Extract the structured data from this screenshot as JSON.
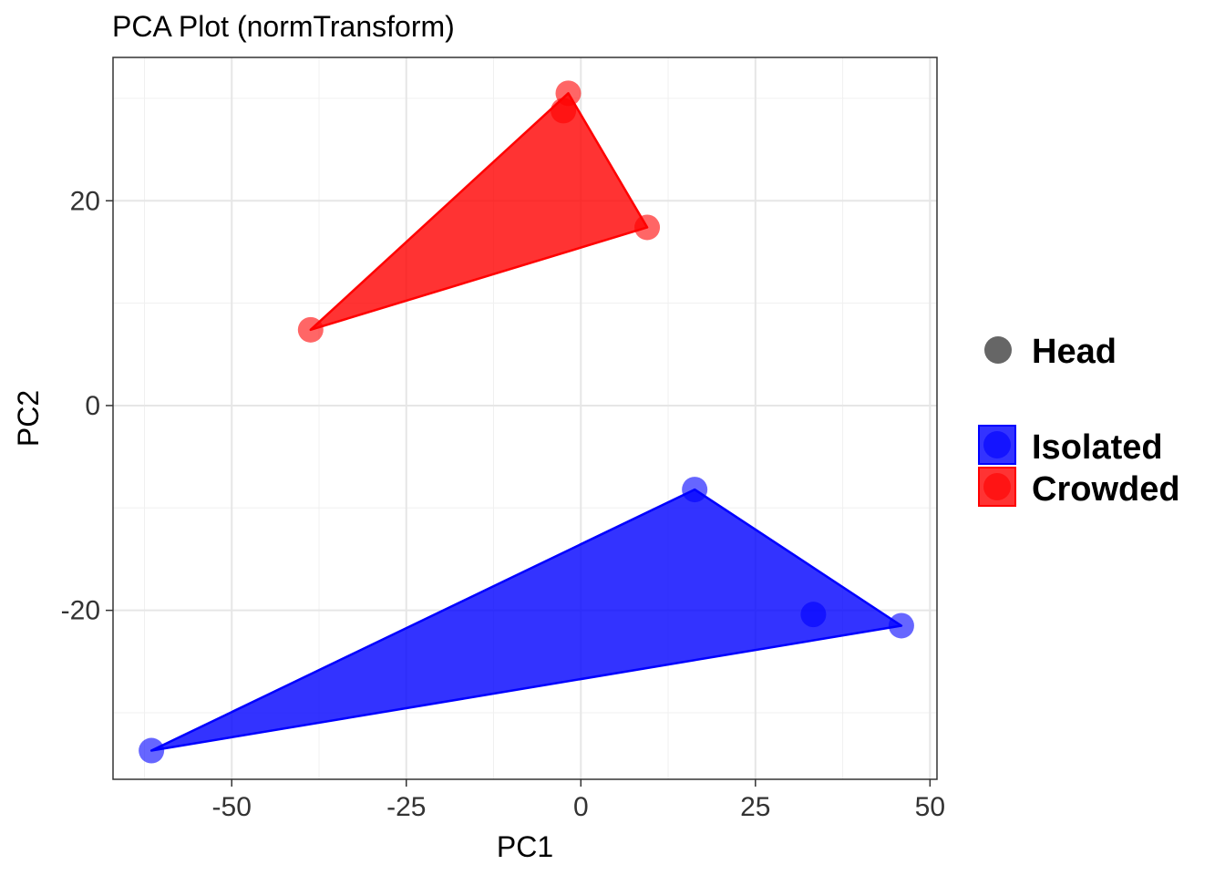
{
  "chart_data": {
    "type": "scatter",
    "title": "PCA Plot (normTransform)",
    "xlabel": "PC1",
    "ylabel": "PC2",
    "xlim": [
      -67,
      51
    ],
    "ylim": [
      -36.5,
      34.0
    ],
    "xticks": [
      -50,
      -25,
      0,
      25,
      50
    ],
    "xtick_labels": [
      "-50",
      "-25",
      "0",
      "25",
      "50"
    ],
    "yticks": [
      -20,
      0,
      20
    ],
    "ytick_labels": [
      "-20",
      "0",
      "20"
    ],
    "grid": true,
    "legend": {
      "placement": "right",
      "shape_title": "Head",
      "groups": [
        "Isolated",
        "Crowded"
      ]
    },
    "series": [
      {
        "name": "Isolated",
        "color": "#0000ff",
        "points": [
          {
            "x": -61.5,
            "y": -33.7
          },
          {
            "x": 16.3,
            "y": -8.2
          },
          {
            "x": 33.3,
            "y": -20.4
          },
          {
            "x": 45.9,
            "y": -21.5
          }
        ],
        "hull": [
          [
            -61.5,
            -33.7
          ],
          [
            16.3,
            -8.2
          ],
          [
            45.9,
            -21.5
          ]
        ]
      },
      {
        "name": "Crowded",
        "color": "#ff0000",
        "points": [
          {
            "x": -38.7,
            "y": 7.4
          },
          {
            "x": -1.8,
            "y": 30.5
          },
          {
            "x": -2.5,
            "y": 28.8
          },
          {
            "x": 9.5,
            "y": 17.4
          }
        ],
        "hull": [
          [
            -38.7,
            7.4
          ],
          [
            -1.8,
            30.5
          ],
          [
            9.5,
            17.4
          ]
        ]
      }
    ]
  }
}
